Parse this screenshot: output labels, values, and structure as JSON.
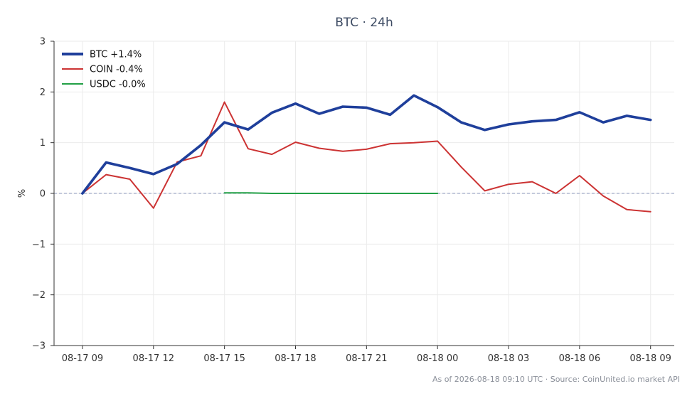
{
  "chart_data": {
    "type": "line",
    "title": "BTC · 24h",
    "xlabel": "",
    "ylabel": "%",
    "ylim": [
      -3,
      3
    ],
    "yticks": [
      3,
      2,
      1,
      0,
      -1,
      -2,
      -3
    ],
    "ytick_labels": [
      "3",
      "2",
      "1",
      "0",
      "−1",
      "−2",
      "−3"
    ],
    "x_hours": [
      0,
      1,
      2,
      3,
      4,
      5,
      6,
      7,
      8,
      9,
      10,
      11,
      12,
      13,
      14,
      15,
      16,
      17,
      18,
      19,
      20,
      21,
      22,
      23,
      24
    ],
    "xlim_hours": [
      -1.2,
      25
    ],
    "xticks_hours": [
      0,
      3,
      6,
      9,
      12,
      15,
      18,
      21,
      24
    ],
    "xtick_labels": [
      "08-17 09",
      "08-17 12",
      "08-17 15",
      "08-17 18",
      "08-17 21",
      "08-18 00",
      "08-18 03",
      "08-18 06",
      "08-18 09"
    ],
    "grid": true,
    "reference_line": 0,
    "legend_position": "top-left",
    "series": [
      {
        "name": "BTC +1.4%",
        "color": "#1f3f9b",
        "width": "thick",
        "x": [
          0,
          1,
          2,
          3,
          4,
          5,
          6,
          7,
          8,
          9,
          10,
          11,
          12,
          13,
          14,
          15,
          16,
          17,
          18,
          19,
          20,
          21,
          22,
          23,
          24
        ],
        "values": [
          0,
          0.61,
          0.5,
          0.38,
          0.58,
          0.95,
          1.4,
          1.26,
          1.59,
          1.77,
          1.57,
          1.71,
          1.69,
          1.55,
          1.93,
          1.7,
          1.4,
          1.25,
          1.36,
          1.42,
          1.45,
          1.6,
          1.4,
          1.53,
          1.45
        ]
      },
      {
        "name": "COIN -0.4%",
        "color": "#cc3333",
        "width": "normal",
        "x": [
          0,
          1,
          2,
          3,
          4,
          5,
          6,
          7,
          8,
          9,
          10,
          11,
          12,
          13,
          14,
          15,
          16,
          17,
          18,
          19,
          20,
          21,
          22,
          23,
          24
        ],
        "values": [
          0,
          0.37,
          0.28,
          -0.29,
          0.62,
          0.74,
          1.8,
          0.88,
          0.77,
          1.01,
          0.89,
          0.83,
          0.87,
          0.98,
          1.0,
          1.03,
          0.52,
          0.05,
          0.18,
          0.23,
          0.0,
          0.35,
          -0.05,
          -0.32,
          -0.36
        ]
      },
      {
        "name": "USDC -0.0%",
        "color": "#22a046",
        "width": "normal",
        "x": [
          6,
          7,
          8,
          9,
          10,
          11,
          12,
          13,
          14,
          15
        ],
        "values": [
          0.01,
          0.01,
          0.0,
          0.0,
          0.0,
          0.0,
          0.0,
          0.0,
          0.0,
          0.0
        ]
      }
    ]
  },
  "footer": "As of 2026-08-18 09:10 UTC · Source: CoinUnited.io market API"
}
